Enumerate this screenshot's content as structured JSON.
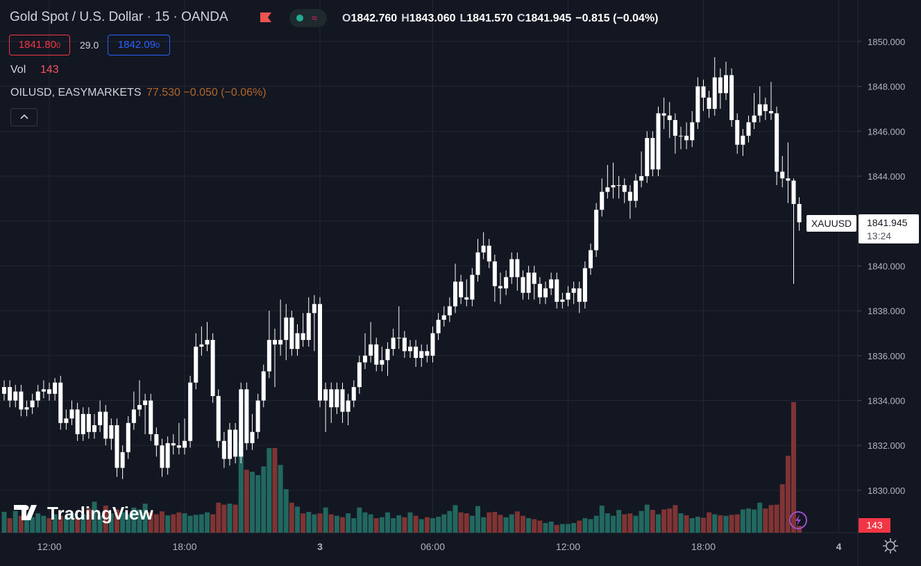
{
  "header": {
    "symbol": "Gold Spot / U.S. Dollar · 15 · OANDA",
    "ohlc": [
      {
        "key": "O",
        "value": "1842.760"
      },
      {
        "key": "H",
        "value": "1843.060"
      },
      {
        "key": "L",
        "value": "1841.570"
      },
      {
        "key": "C",
        "value": "1841.945"
      }
    ],
    "change": "−0.815 (−0.04%)",
    "bid": "1841.80",
    "bid_sup": "0",
    "spread": "29.0",
    "ask": "1842.09",
    "ask_sup": "0",
    "vol_label": "Vol",
    "overlay": "OILUSD, EASYMARKETS",
    "overlay_value": "77.530 −0.050 (−0.06%)",
    "price_tag": "XAUUSD",
    "countdown": "13:24",
    "watermark": "TradingView"
  },
  "chart_data": {
    "type": "candlestick",
    "categories": [
      null,
      null,
      null,
      null,
      null,
      null,
      null,
      null,
      "12:00",
      null,
      null,
      null,
      null,
      null,
      null,
      null,
      null,
      null,
      null,
      null,
      null,
      null,
      null,
      null,
      null,
      null,
      null,
      null,
      null,
      null,
      null,
      null,
      "18:00",
      null,
      null,
      null,
      null,
      null,
      null,
      null,
      null,
      null,
      null,
      null,
      null,
      null,
      null,
      null,
      null,
      null,
      null,
      null,
      null,
      null,
      null,
      null,
      "3",
      null,
      null,
      null,
      null,
      null,
      null,
      null,
      null,
      null,
      null,
      null,
      null,
      null,
      null,
      null,
      null,
      null,
      null,
      null,
      "06:00",
      null,
      null,
      null,
      null,
      null,
      null,
      null,
      null,
      null,
      null,
      null,
      null,
      null,
      null,
      null,
      null,
      null,
      null,
      null,
      null,
      null,
      null,
      null,
      "12:00",
      null,
      null,
      null,
      null,
      null,
      null,
      null,
      null,
      null,
      null,
      null,
      null,
      null,
      null,
      null,
      null,
      null,
      null,
      null,
      null,
      null,
      null,
      null,
      "18:00",
      null,
      null,
      null,
      null,
      null,
      null,
      null,
      null,
      null,
      null,
      null,
      null,
      null,
      null,
      null,
      null,
      null,
      null,
      null,
      null,
      null,
      null,
      null,
      "4"
    ],
    "open": [
      1834.3,
      1834.6,
      1834.0,
      1834.4,
      1833.6,
      1833.7,
      1834.0,
      1834.4,
      1834.5,
      1834.3,
      1834.8,
      1833.0,
      1833.2,
      1833.6,
      1832.5,
      1833.4,
      1832.6,
      1832.9,
      1833.5,
      1832.3,
      1832.9,
      1831.0,
      1831.7,
      1833.0,
      1833.6,
      1833.8,
      1834.0,
      1832.5,
      1832.0,
      1831.0,
      1832.1,
      1832.0,
      1831.9,
      1832.2,
      1834.8,
      1836.4,
      1836.5,
      1836.7,
      1834.2,
      1832.2,
      1831.4,
      1832.7,
      1831.5,
      1834.5,
      1832.1,
      1832.6,
      1834.0,
      1835.3,
      1836.7,
      1836.5,
      1836.7,
      1837.7,
      1836.3,
      1837.0,
      1836.7,
      1837.9,
      1838.3,
      1834.0,
      1834.5,
      1833.7,
      1834.5,
      1833.5,
      1834.0,
      1834.6,
      1835.7,
      1836.0,
      1836.5,
      1835.6,
      1835.8,
      1836.3,
      1836.8,
      1836.8,
      1836.2,
      1836.4,
      1835.9,
      1836.2,
      1836.0,
      1837.0,
      1837.6,
      1837.8,
      1838.2,
      1839.3,
      1838.6,
      1838.5,
      1839.6,
      1840.6,
      1840.9,
      1840.2,
      1839.1,
      1839.0,
      1839.5,
      1840.3,
      1839.5,
      1838.8,
      1839.7,
      1839.2,
      1838.6,
      1839.0,
      1839.4,
      1838.4,
      1838.5,
      1838.8,
      1839.0,
      1838.4,
      1839.9,
      1840.7,
      1842.5,
      1843.3,
      1843.5,
      1843.6,
      1843.6,
      1843.3,
      1842.9,
      1843.8,
      1844.0,
      1845.7,
      1844.3,
      1846.8,
      1846.7,
      1846.5,
      1845.8,
      1845.8,
      1845.6,
      1846.4,
      1848.0,
      1847.5,
      1847.0,
      1848.4,
      1847.7,
      1848.5,
      1846.5,
      1845.4,
      1845.8,
      1846.4,
      1846.7,
      1847.2,
      1846.9,
      1846.8,
      1844.2,
      1843.9,
      1843.8,
      1842.76,
      null,
      null,
      null,
      null,
      null,
      null,
      null
    ],
    "high": [
      1834.9,
      1834.9,
      1834.7,
      1834.7,
      1834.0,
      1834.3,
      1834.7,
      1834.9,
      1834.8,
      1835.0,
      1835.1,
      1833.6,
      1834.0,
      1833.9,
      1833.7,
      1833.7,
      1833.4,
      1834.0,
      1833.8,
      1833.2,
      1833.2,
      1832.0,
      1833.3,
      1834.4,
      1834.9,
      1834.3,
      1834.3,
      1832.8,
      1832.3,
      1832.4,
      1832.5,
      1833.0,
      1833.2,
      1835.1,
      1837.0,
      1837.3,
      1837.5,
      1837.0,
      1834.5,
      1832.6,
      1833.0,
      1833.0,
      1834.8,
      1834.8,
      1833.4,
      1834.3,
      1835.6,
      1838.0,
      1837.2,
      1838.5,
      1838.3,
      1838.0,
      1837.4,
      1837.9,
      1838.6,
      1838.7,
      1838.6,
      1834.8,
      1834.8,
      1834.8,
      1834.8,
      1834.3,
      1834.9,
      1836.0,
      1837.0,
      1837.5,
      1836.8,
      1836.4,
      1836.6,
      1837.2,
      1838.2,
      1837.1,
      1836.7,
      1836.7,
      1836.5,
      1836.5,
      1837.3,
      1837.9,
      1838.2,
      1838.6,
      1840.1,
      1839.6,
      1839.4,
      1839.9,
      1841.2,
      1841.5,
      1841.2,
      1840.5,
      1839.7,
      1839.8,
      1840.6,
      1840.6,
      1839.8,
      1840.0,
      1840.0,
      1839.5,
      1839.3,
      1839.7,
      1839.7,
      1838.8,
      1839.1,
      1839.3,
      1839.3,
      1840.2,
      1841.0,
      1842.8,
      1843.9,
      1844.5,
      1844.6,
      1844.0,
      1843.9,
      1843.6,
      1844.1,
      1845.1,
      1846.0,
      1846.0,
      1847.1,
      1847.5,
      1847.3,
      1846.8,
      1846.2,
      1846.4,
      1846.9,
      1848.4,
      1848.3,
      1847.8,
      1849.3,
      1848.8,
      1849.1,
      1848.8,
      1846.8,
      1846.1,
      1846.7,
      1847.7,
      1848.0,
      1847.5,
      1848.2,
      1847.1,
      1844.9,
      1845.5,
      1843.9,
      1843.06,
      null,
      null,
      null,
      null,
      null,
      null,
      null
    ],
    "low": [
      1834.0,
      1833.7,
      1833.7,
      1833.3,
      1833.3,
      1833.4,
      1833.7,
      1834.1,
      1834.0,
      1834.0,
      1832.7,
      1832.7,
      1832.9,
      1832.2,
      1832.2,
      1832.3,
      1832.3,
      1832.6,
      1832.0,
      1831.8,
      1830.6,
      1830.5,
      1831.4,
      1832.7,
      1833.3,
      1832.5,
      1832.2,
      1831.5,
      1830.6,
      1830.7,
      1831.6,
      1831.6,
      1831.6,
      1831.9,
      1834.5,
      1836.0,
      1836.2,
      1833.9,
      1831.9,
      1831.0,
      1831.1,
      1831.2,
      1831.2,
      1831.8,
      1831.8,
      1832.3,
      1833.7,
      1835.0,
      1834.6,
      1836.0,
      1835.8,
      1836.0,
      1836.0,
      1836.4,
      1836.4,
      1836.2,
      1833.7,
      1832.6,
      1833.0,
      1833.4,
      1833.0,
      1832.9,
      1833.7,
      1834.3,
      1835.4,
      1835.7,
      1835.3,
      1835.3,
      1835.1,
      1836.0,
      1836.3,
      1835.9,
      1835.9,
      1835.5,
      1835.5,
      1835.7,
      1835.7,
      1836.7,
      1837.3,
      1837.5,
      1837.9,
      1838.3,
      1838.2,
      1838.2,
      1839.3,
      1840.3,
      1839.9,
      1838.4,
      1838.3,
      1838.7,
      1839.2,
      1838.9,
      1838.5,
      1838.5,
      1838.5,
      1838.3,
      1838.3,
      1838.7,
      1838.1,
      1838.1,
      1838.2,
      1838.3,
      1837.9,
      1838.1,
      1839.6,
      1840.4,
      1842.2,
      1843.0,
      1843.0,
      1843.0,
      1842.8,
      1842.1,
      1842.6,
      1843.5,
      1843.7,
      1844.0,
      1844.0,
      1846.1,
      1845.7,
      1845.0,
      1845.2,
      1845.2,
      1845.3,
      1846.1,
      1846.9,
      1846.6,
      1846.7,
      1847.0,
      1847.4,
      1846.2,
      1845.0,
      1844.9,
      1845.5,
      1846.1,
      1846.4,
      1846.5,
      1846.5,
      1843.6,
      1843.5,
      1842.8,
      1839.2,
      1841.57,
      null,
      null,
      null,
      null,
      null,
      null,
      null
    ],
    "close": [
      1834.6,
      1834.0,
      1834.4,
      1833.6,
      1833.7,
      1834.0,
      1834.4,
      1834.5,
      1834.3,
      1834.8,
      1833.0,
      1833.2,
      1833.6,
      1832.5,
      1833.4,
      1832.6,
      1832.9,
      1833.5,
      1832.3,
      1832.9,
      1831.0,
      1831.7,
      1833.0,
      1833.6,
      1833.8,
      1834.0,
      1832.5,
      1832.0,
      1831.0,
      1832.1,
      1832.0,
      1831.9,
      1832.2,
      1834.8,
      1836.4,
      1836.5,
      1836.7,
      1834.2,
      1832.2,
      1831.4,
      1832.7,
      1831.5,
      1834.5,
      1832.1,
      1832.6,
      1834.0,
      1835.3,
      1836.7,
      1836.5,
      1836.7,
      1837.7,
      1836.3,
      1837.0,
      1836.7,
      1837.9,
      1838.3,
      1834.0,
      1834.5,
      1833.7,
      1834.5,
      1833.5,
      1834.0,
      1834.6,
      1835.7,
      1836.0,
      1836.5,
      1835.6,
      1835.8,
      1836.3,
      1836.8,
      1836.8,
      1836.2,
      1836.4,
      1835.9,
      1836.2,
      1836.0,
      1837.0,
      1837.6,
      1837.8,
      1838.2,
      1839.3,
      1838.6,
      1838.5,
      1839.6,
      1840.6,
      1840.9,
      1840.2,
      1839.1,
      1839.0,
      1839.5,
      1840.3,
      1839.5,
      1838.8,
      1839.7,
      1839.2,
      1838.6,
      1839.0,
      1839.4,
      1838.4,
      1838.5,
      1838.8,
      1839.0,
      1838.4,
      1839.9,
      1840.7,
      1842.5,
      1843.3,
      1843.5,
      1843.6,
      1843.6,
      1843.3,
      1842.9,
      1843.8,
      1844.0,
      1845.7,
      1844.3,
      1846.8,
      1846.7,
      1846.5,
      1845.8,
      1845.8,
      1845.6,
      1846.4,
      1848.0,
      1847.5,
      1847.0,
      1848.4,
      1847.7,
      1848.5,
      1846.5,
      1845.4,
      1845.8,
      1846.4,
      1846.7,
      1847.2,
      1846.9,
      1846.8,
      1844.2,
      1843.9,
      1843.8,
      1842.76,
      1841.945,
      null,
      null,
      null,
      null,
      null,
      null,
      null
    ],
    "volume": [
      430,
      300,
      450,
      350,
      280,
      320,
      400,
      350,
      300,
      380,
      350,
      320,
      400,
      300,
      380,
      500,
      640,
      350,
      560,
      400,
      480,
      420,
      380,
      520,
      480,
      600,
      420,
      380,
      440,
      360,
      380,
      420,
      400,
      350,
      370,
      380,
      420,
      380,
      620,
      580,
      600,
      580,
      1890,
      1300,
      1260,
      1190,
      1370,
      1750,
      1750,
      1400,
      900,
      620,
      540,
      400,
      430,
      380,
      400,
      520,
      380,
      350,
      320,
      400,
      300,
      520,
      420,
      380,
      300,
      320,
      420,
      300,
      360,
      320,
      420,
      350,
      280,
      320,
      300,
      330,
      380,
      450,
      570,
      420,
      400,
      350,
      550,
      320,
      420,
      430,
      370,
      320,
      380,
      440,
      350,
      300,
      280,
      250,
      200,
      230,
      160,
      180,
      180,
      200,
      250,
      300,
      280,
      350,
      560,
      400,
      350,
      470,
      380,
      400,
      350,
      450,
      580,
      470,
      380,
      480,
      500,
      570,
      400,
      360,
      300,
      330,
      310,
      420,
      380,
      360,
      350,
      370,
      380,
      480,
      500,
      480,
      620,
      500,
      570,
      580,
      1000,
      1590,
      2700,
      143,
      null,
      null,
      null,
      null,
      null,
      null,
      null
    ],
    "ylim": [
      1828.11,
      1851.85
    ],
    "yticks": [
      {
        "value": 1830,
        "label": "1830.000"
      },
      {
        "value": 1832,
        "label": "1832.000"
      },
      {
        "value": 1834,
        "label": "1834.000"
      },
      {
        "value": 1836,
        "label": "1836.000"
      },
      {
        "value": 1838,
        "label": "1838.000"
      },
      {
        "value": 1840,
        "label": "1840.000"
      },
      {
        "value": 1842,
        "label": "1842.000"
      },
      {
        "value": 1844,
        "label": "1844.000"
      },
      {
        "value": 1846,
        "label": "1846.000"
      },
      {
        "value": 1848,
        "label": "1848.000"
      },
      {
        "value": 1850,
        "label": "1850.000"
      }
    ],
    "volume_ylim": [
      0,
      4300
    ],
    "grid": true,
    "candle_color": "#ffffff",
    "up_volume_color": "#22675f",
    "down_volume_color": "#7f3434"
  }
}
